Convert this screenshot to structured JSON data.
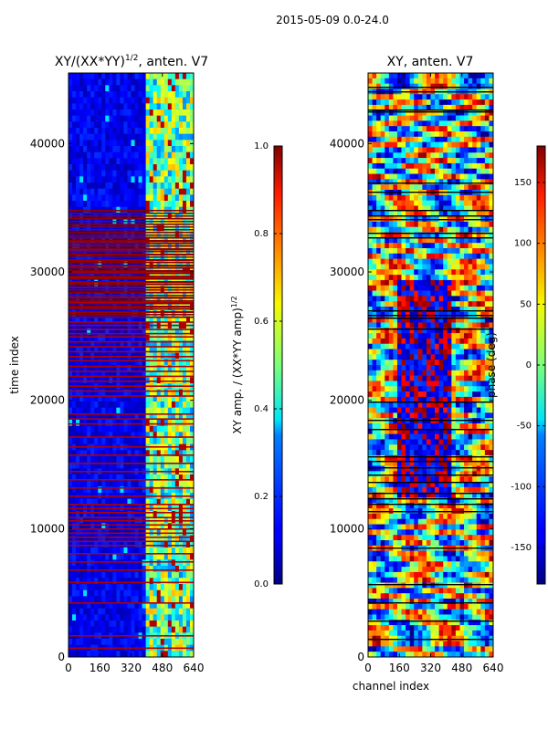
{
  "figure": {
    "suptitle": "2015-05-09 0.0-24.0"
  },
  "chart_data": [
    {
      "type": "heatmap",
      "title": "XY/(XX*YY)",
      "title_sup": "1/2",
      "title_suffix": ", anten. V7",
      "xlabel": "",
      "ylabel": "time index",
      "xlim": [
        0,
        640
      ],
      "ylim": [
        0,
        45500
      ],
      "xticks": [
        0,
        160,
        320,
        480,
        640
      ],
      "yticks": [
        0,
        10000,
        20000,
        30000,
        40000
      ],
      "colorbar": {
        "label": "XY amp. / (XX*YY amp)",
        "label_sup": "1/2",
        "range": [
          0.0,
          1.0
        ],
        "ticks": [
          "0.0",
          "0.2",
          "0.4",
          "0.6",
          "0.8",
          "1.0"
        ],
        "colormap": "jet"
      }
    },
    {
      "type": "heatmap",
      "title": "XY, anten. V7",
      "xlabel": "channel index",
      "ylabel": "",
      "xlim": [
        0,
        640
      ],
      "ylim": [
        0,
        45500
      ],
      "xticks": [
        0,
        160,
        320,
        480,
        640
      ],
      "yticks": [
        0,
        10000,
        20000,
        30000,
        40000
      ],
      "colorbar": {
        "label": "phase (deg)",
        "range": [
          -180,
          180
        ],
        "ticks": [
          "-150",
          "-100",
          "-50",
          "0",
          "50",
          "100",
          "150"
        ],
        "colormap": "jet"
      }
    }
  ]
}
